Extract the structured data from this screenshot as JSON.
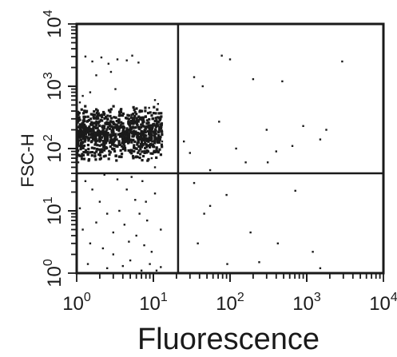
{
  "chart_data": {
    "type": "scatter",
    "title": "",
    "xlabel": "Fluorescence",
    "ylabel": "FSC-H",
    "xscale": "log",
    "yscale": "log",
    "xlim": [
      1,
      10000
    ],
    "ylim": [
      1,
      10000
    ],
    "grid": false,
    "x_ticks": [
      {
        "base": "10",
        "exp": "0"
      },
      {
        "base": "10",
        "exp": "1"
      },
      {
        "base": "10",
        "exp": "2"
      },
      {
        "base": "10",
        "exp": "3"
      },
      {
        "base": "10",
        "exp": "4"
      }
    ],
    "y_ticks": [
      {
        "base": "10",
        "exp": "0"
      },
      {
        "base": "10",
        "exp": "1"
      },
      {
        "base": "10",
        "exp": "2"
      },
      {
        "base": "10",
        "exp": "3"
      },
      {
        "base": "10",
        "exp": "4"
      }
    ],
    "gates": {
      "x": 21,
      "y": 40
    },
    "dense_cluster": {
      "x_range": [
        1,
        13
      ],
      "y_range": [
        60,
        500
      ],
      "n_points": 900
    },
    "points": [
      [
        1.3,
        3000
      ],
      [
        1.6,
        2500
      ],
      [
        2.1,
        2900
      ],
      [
        2.6,
        2300
      ],
      [
        3.4,
        2700
      ],
      [
        4.5,
        2600
      ],
      [
        5.3,
        3100
      ],
      [
        6.4,
        2400
      ],
      [
        1.8,
        1500
      ],
      [
        2.8,
        1700
      ],
      [
        1.2,
        700
      ],
      [
        1.5,
        800
      ],
      [
        1.1,
        550
      ],
      [
        3.2,
        900
      ],
      [
        10.5,
        600
      ],
      [
        8.8,
        450
      ],
      [
        11.5,
        520
      ],
      [
        12.5,
        300
      ],
      [
        13,
        130
      ],
      [
        11.8,
        90
      ],
      [
        1.05,
        60
      ],
      [
        1.1,
        200
      ],
      [
        9.5,
        70
      ],
      [
        10.5,
        50
      ],
      [
        34,
        1400
      ],
      [
        44,
        1000
      ],
      [
        78,
        3100
      ],
      [
        100,
        2700
      ],
      [
        200,
        1300
      ],
      [
        480,
        1200
      ],
      [
        2900,
        2500
      ],
      [
        72,
        270
      ],
      [
        300,
        200
      ],
      [
        900,
        230
      ],
      [
        1800,
        200
      ],
      [
        120,
        100
      ],
      [
        650,
        110
      ],
      [
        310,
        60
      ],
      [
        160,
        60
      ],
      [
        400,
        90
      ],
      [
        1500,
        140
      ],
      [
        55,
        45
      ],
      [
        25,
        130
      ],
      [
        30,
        85
      ],
      [
        1.3,
        30
      ],
      [
        1.6,
        22
      ],
      [
        2.0,
        14
      ],
      [
        2.5,
        9
      ],
      [
        3.4,
        32
      ],
      [
        4.5,
        22
      ],
      [
        5.8,
        15
      ],
      [
        1.2,
        5
      ],
      [
        1.5,
        3
      ],
      [
        2.2,
        2.5
      ],
      [
        3.0,
        2
      ],
      [
        4.2,
        6
      ],
      [
        6.0,
        4
      ],
      [
        8.3,
        7
      ],
      [
        9.5,
        2.2
      ],
      [
        1.1,
        11
      ],
      [
        7.2,
        30
      ],
      [
        10.5,
        19
      ],
      [
        12.5,
        5
      ],
      [
        5.0,
        1.6
      ],
      [
        1.4,
        1.4
      ],
      [
        2.5,
        1.2
      ],
      [
        4.0,
        1.3
      ],
      [
        7.0,
        1.1
      ],
      [
        9.0,
        1.4
      ],
      [
        11.0,
        1.1
      ],
      [
        12.5,
        1.25
      ],
      [
        3.6,
        10
      ],
      [
        6.6,
        9
      ],
      [
        8.0,
        14
      ],
      [
        2.3,
        38
      ],
      [
        5.2,
        35
      ],
      [
        1.8,
        6.5
      ],
      [
        3.0,
        4.5
      ],
      [
        4.8,
        3.2
      ],
      [
        7.6,
        2.8
      ],
      [
        34,
        28
      ],
      [
        90,
        18
      ],
      [
        710,
        21
      ],
      [
        46,
        9
      ],
      [
        185,
        4.5
      ],
      [
        420,
        3
      ],
      [
        1200,
        2.2
      ],
      [
        38,
        3
      ],
      [
        240,
        1.5
      ],
      [
        1500,
        1.2
      ],
      [
        92,
        1.4
      ],
      [
        55,
        12
      ]
    ]
  }
}
